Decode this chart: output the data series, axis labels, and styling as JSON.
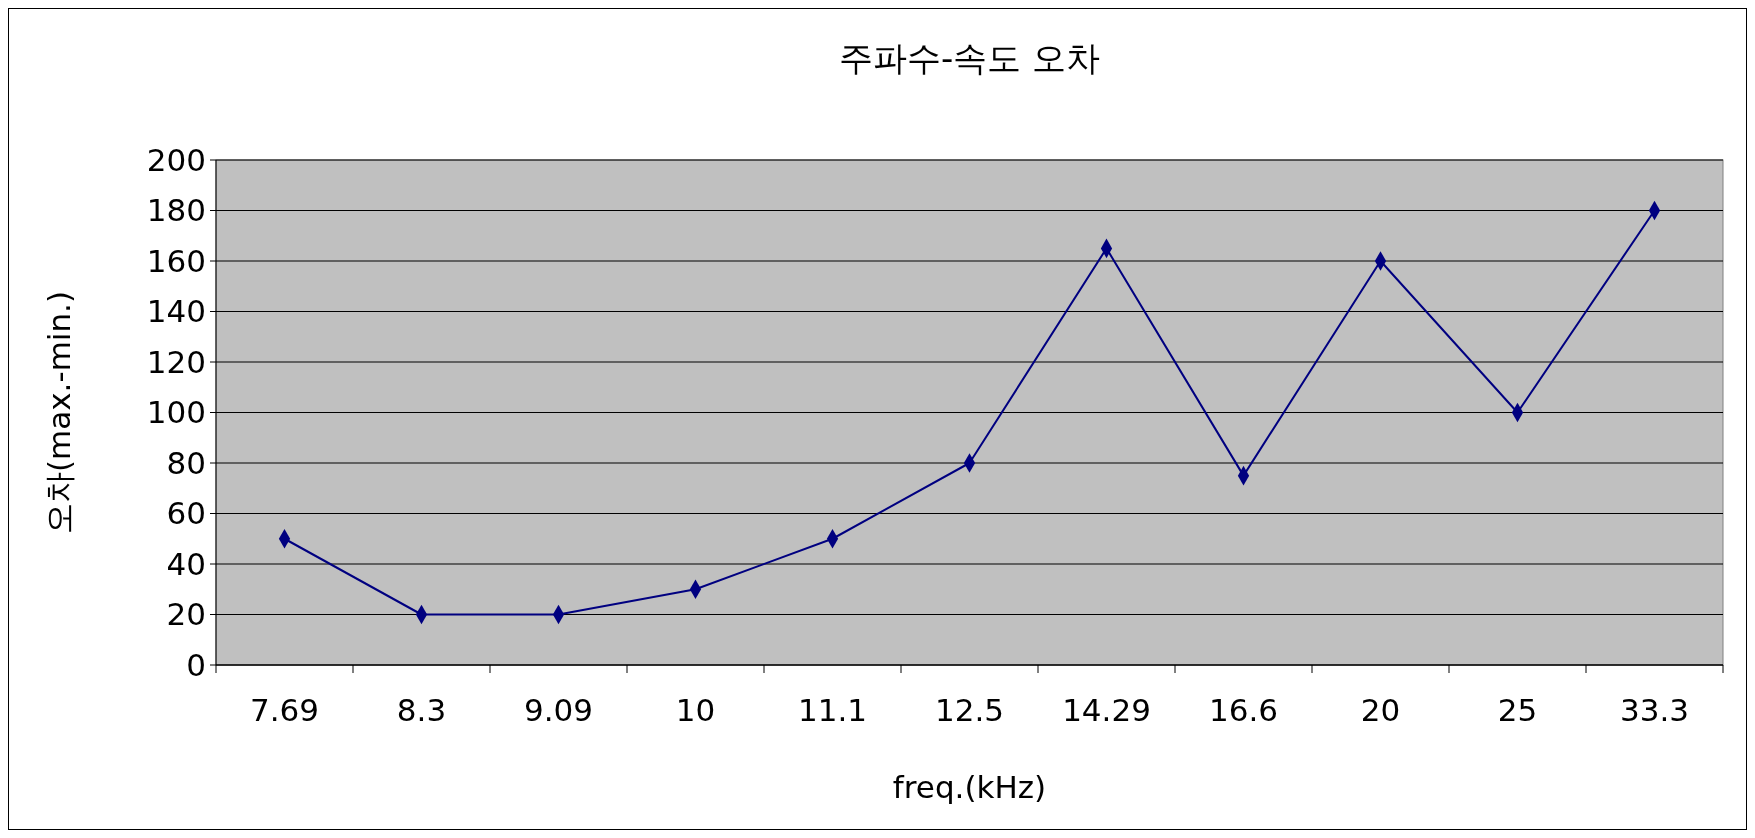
{
  "chart_data": {
    "type": "line",
    "title": "주파수-속도 오차",
    "xlabel": "freq.(kHz)",
    "ylabel": "오차(max.-min.)",
    "categories": [
      "7.69",
      "8.3",
      "9.09",
      "10",
      "11.1",
      "12.5",
      "14.29",
      "16.6",
      "20",
      "25",
      "33.3"
    ],
    "series": [
      {
        "color": "#000080",
        "values": [
          50,
          20,
          20,
          30,
          50,
          80,
          165,
          75,
          160,
          100,
          180
        ]
      }
    ],
    "ylim": [
      0,
      200
    ],
    "yticks": [
      0,
      20,
      40,
      60,
      80,
      100,
      120,
      140,
      160,
      180,
      200
    ],
    "grid": "y",
    "marker": "diamond",
    "line_style": "solid"
  }
}
